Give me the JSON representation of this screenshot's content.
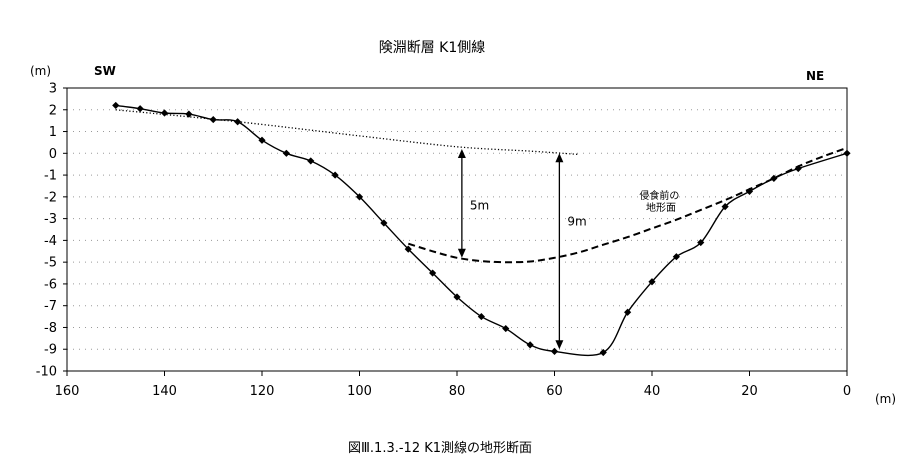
{
  "chart_data": {
    "type": "line",
    "title": "険淵断層 K1側線",
    "caption": "図Ⅲ.1.3.-12 K1測線の地形断面",
    "x_unit": "(m)",
    "y_unit": "(m)",
    "xlim": [
      160,
      0
    ],
    "ylim": [
      -10,
      3
    ],
    "x_ticks": [
      160,
      140,
      120,
      100,
      80,
      60,
      40,
      20,
      0
    ],
    "y_ticks": [
      3,
      2,
      1,
      0,
      -1,
      -2,
      -3,
      -4,
      -5,
      -6,
      -7,
      -8,
      -9,
      -10
    ],
    "grid": "dotted-horizontal",
    "direction_left": "SW",
    "direction_right": "NE",
    "series": [
      {
        "style": "solid-with-diamond-markers",
        "points": [
          [
            150,
            2.2
          ],
          [
            145,
            2.05
          ],
          [
            140,
            1.85
          ],
          [
            135,
            1.8
          ],
          [
            130,
            1.55
          ],
          [
            125,
            1.45
          ],
          [
            120,
            0.6
          ],
          [
            115,
            0.0
          ],
          [
            110,
            -0.35
          ],
          [
            105,
            -1.0
          ],
          [
            100,
            -2.0
          ],
          [
            95,
            -3.2
          ],
          [
            90,
            -4.4
          ],
          [
            85,
            -5.5
          ],
          [
            80,
            -6.6
          ],
          [
            75,
            -7.5
          ],
          [
            70,
            -8.05
          ],
          [
            65,
            -8.8
          ],
          [
            60,
            -9.1
          ],
          [
            50,
            -9.15
          ],
          [
            45,
            -7.3
          ],
          [
            40,
            -5.9
          ],
          [
            35,
            -4.75
          ],
          [
            30,
            -4.1
          ],
          [
            25,
            -2.45
          ],
          [
            20,
            -1.75
          ],
          [
            15,
            -1.15
          ],
          [
            10,
            -0.7
          ],
          [
            0,
            0.0
          ]
        ]
      },
      {
        "style": "dotted",
        "points": [
          [
            150,
            2.0
          ],
          [
            125,
            1.45
          ],
          [
            100,
            0.8
          ],
          [
            80,
            0.3
          ],
          [
            65,
            0.1
          ],
          [
            55,
            -0.05
          ]
        ]
      },
      {
        "style": "dashed",
        "label": "侵食前の\n地形面",
        "points": [
          [
            90,
            -4.15
          ],
          [
            85,
            -4.5
          ],
          [
            80,
            -4.8
          ],
          [
            75,
            -4.95
          ],
          [
            70,
            -5.0
          ],
          [
            65,
            -4.97
          ],
          [
            60,
            -4.8
          ],
          [
            55,
            -4.55
          ],
          [
            50,
            -4.2
          ],
          [
            45,
            -3.85
          ],
          [
            40,
            -3.45
          ],
          [
            35,
            -3.05
          ],
          [
            30,
            -2.6
          ],
          [
            25,
            -2.15
          ],
          [
            20,
            -1.65
          ],
          [
            15,
            -1.15
          ],
          [
            10,
            -0.6
          ],
          [
            5,
            -0.15
          ],
          [
            0,
            0.25
          ]
        ]
      }
    ],
    "annotations": [
      {
        "text": "5m",
        "x": 79,
        "y_from": 0.2,
        "y_to": -4.8
      },
      {
        "text": "9m",
        "x": 59,
        "y_from": 0.0,
        "y_to": -9.0
      }
    ]
  }
}
